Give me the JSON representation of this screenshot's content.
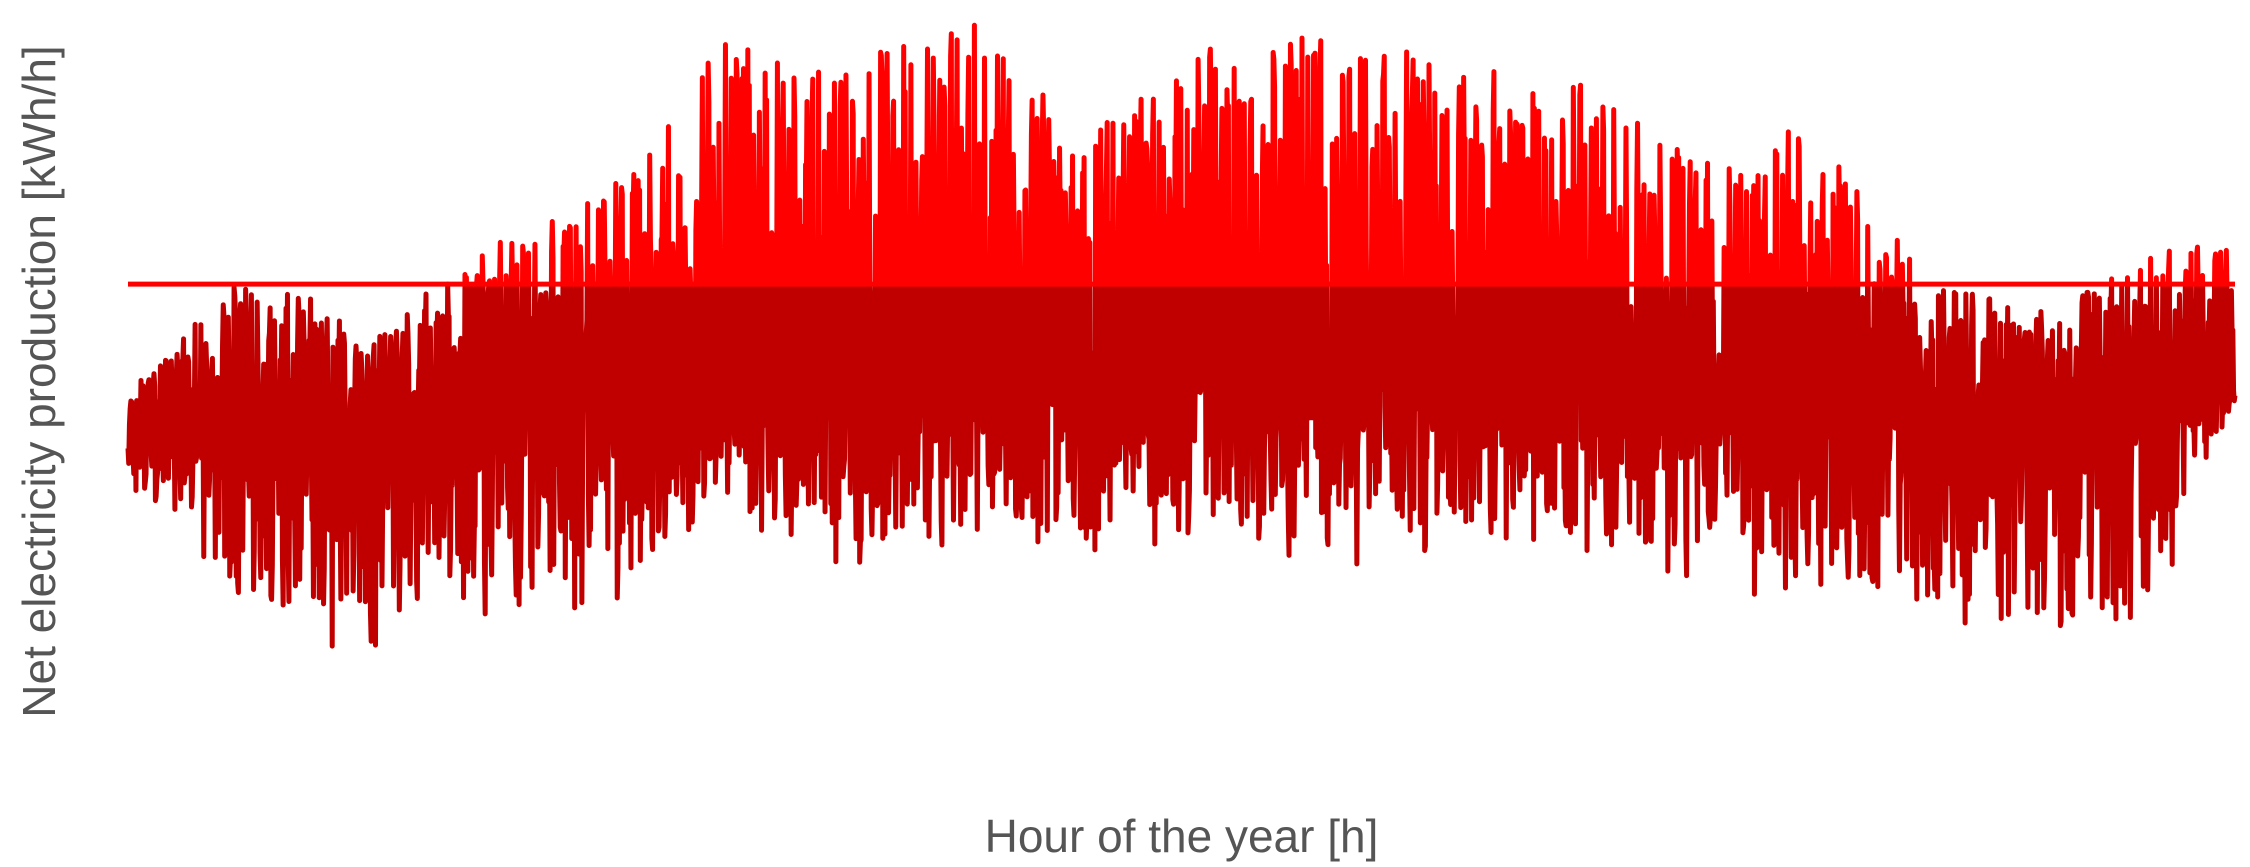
{
  "chart_data": {
    "type": "line",
    "title": "",
    "xlabel": "Hour of the year [h]",
    "ylabel": "Net electricity production [kWh/h]",
    "xlim": [
      0,
      8760
    ],
    "ylim": [
      -2.2,
      3.1
    ],
    "grid": false,
    "legend": "none",
    "tick_labels": "none",
    "series": [
      {
        "color": "#c00000",
        "highlight_color": "#ff0000",
        "seasonal_envelope": [
          {
            "x": 0,
            "peak": 0.1,
            "trough": -0.5,
            "baseline": 0.0
          },
          {
            "x": 500,
            "peak": 1.2,
            "trough": -1.7,
            "baseline": -0.1
          },
          {
            "x": 1000,
            "peak": 0.6,
            "trough": -1.8,
            "baseline": -0.1
          },
          {
            "x": 1500,
            "peak": 1.3,
            "trough": -1.6,
            "baseline": 0.1
          },
          {
            "x": 2000,
            "peak": 1.7,
            "trough": -1.5,
            "baseline": 0.2
          },
          {
            "x": 2500,
            "peak": 2.9,
            "trough": -1.0,
            "baseline": 0.25
          },
          {
            "x": 3000,
            "peak": 2.7,
            "trough": -1.2,
            "baseline": 0.2
          },
          {
            "x": 3500,
            "peak": 3.0,
            "trough": -1.0,
            "baseline": 0.3
          },
          {
            "x": 4000,
            "peak": 2.2,
            "trough": -1.1,
            "baseline": 0.3
          },
          {
            "x": 4500,
            "peak": 2.8,
            "trough": -1.0,
            "baseline": 0.35
          },
          {
            "x": 5000,
            "peak": 2.9,
            "trough": -1.2,
            "baseline": 0.3
          },
          {
            "x": 5500,
            "peak": 2.7,
            "trough": -1.1,
            "baseline": 0.25
          },
          {
            "x": 6000,
            "peak": 2.6,
            "trough": -1.2,
            "baseline": 0.25
          },
          {
            "x": 6500,
            "peak": 2.0,
            "trough": -1.3,
            "baseline": 0.15
          },
          {
            "x": 7000,
            "peak": 2.3,
            "trough": -1.5,
            "baseline": 0.1
          },
          {
            "x": 7500,
            "peak": 1.0,
            "trough": -1.6,
            "baseline": -0.05
          },
          {
            "x": 8000,
            "peak": 0.8,
            "trough": -1.9,
            "baseline": -0.1
          },
          {
            "x": 8500,
            "peak": 1.3,
            "trough": -1.5,
            "baseline": 0.1
          },
          {
            "x": 8760,
            "peak": 1.3,
            "trough": 0.1,
            "baseline": 0.2
          }
        ]
      },
      {
        "kind": "horizontal-line",
        "color": "#ff0000",
        "y": 1.0
      }
    ]
  }
}
